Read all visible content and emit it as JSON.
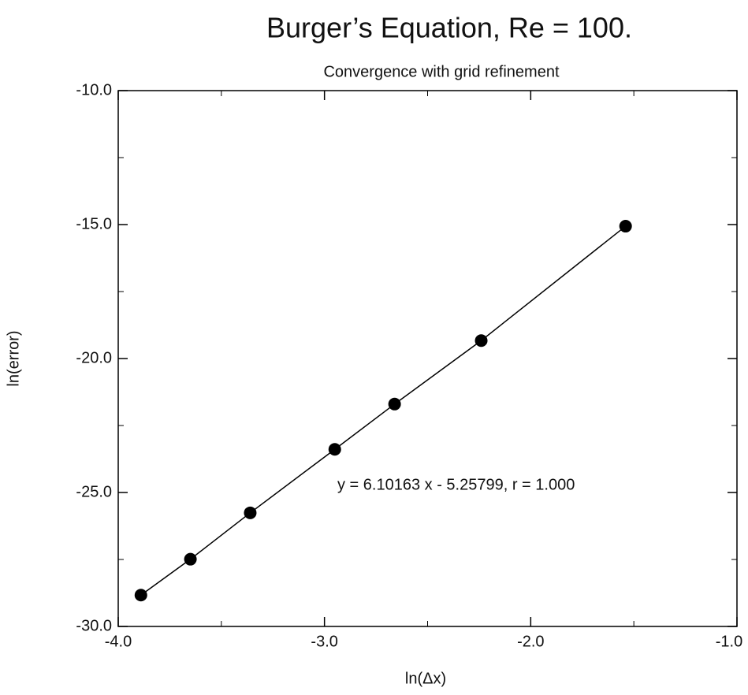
{
  "chart_data": {
    "type": "scatter",
    "title": "Burger’s Equation, Re = 100.",
    "subtitle": "Convergence with grid refinement",
    "xlabel": "ln(Δx)",
    "ylabel": "ln(error)",
    "annotation": "y = 6.10163 x - 5.25799, r = 1.000",
    "series": [
      {
        "color": "#000000",
        "line": true,
        "x": [
          -3.89,
          -3.65,
          -3.36,
          -2.95,
          -2.66,
          -2.24,
          -1.54
        ],
        "values": [
          -28.83,
          -27.49,
          -25.76,
          -23.39,
          -21.7,
          -19.33,
          -15.06
        ]
      }
    ],
    "xlim": [
      -4,
      -1
    ],
    "ylim": [
      -30,
      -10
    ],
    "xticks": [
      {
        "value": -4,
        "label": "-4.0"
      },
      {
        "value": -3,
        "label": "-3.0"
      },
      {
        "value": -2,
        "label": "-2.0"
      },
      {
        "value": -1,
        "label": "-1.0"
      }
    ],
    "xticks_minor": [
      -3.5,
      -2.5,
      -1.5
    ],
    "yticks": [
      {
        "value": -30,
        "label": "-30.0"
      },
      {
        "value": -25,
        "label": "-25.0"
      },
      {
        "value": -20,
        "label": "-20.0"
      },
      {
        "value": -15,
        "label": "-15.0"
      },
      {
        "value": -10,
        "label": "-10.0"
      }
    ],
    "yticks_minor": [
      -27.5,
      -22.5,
      -17.5,
      -12.5
    ],
    "grid": false
  }
}
